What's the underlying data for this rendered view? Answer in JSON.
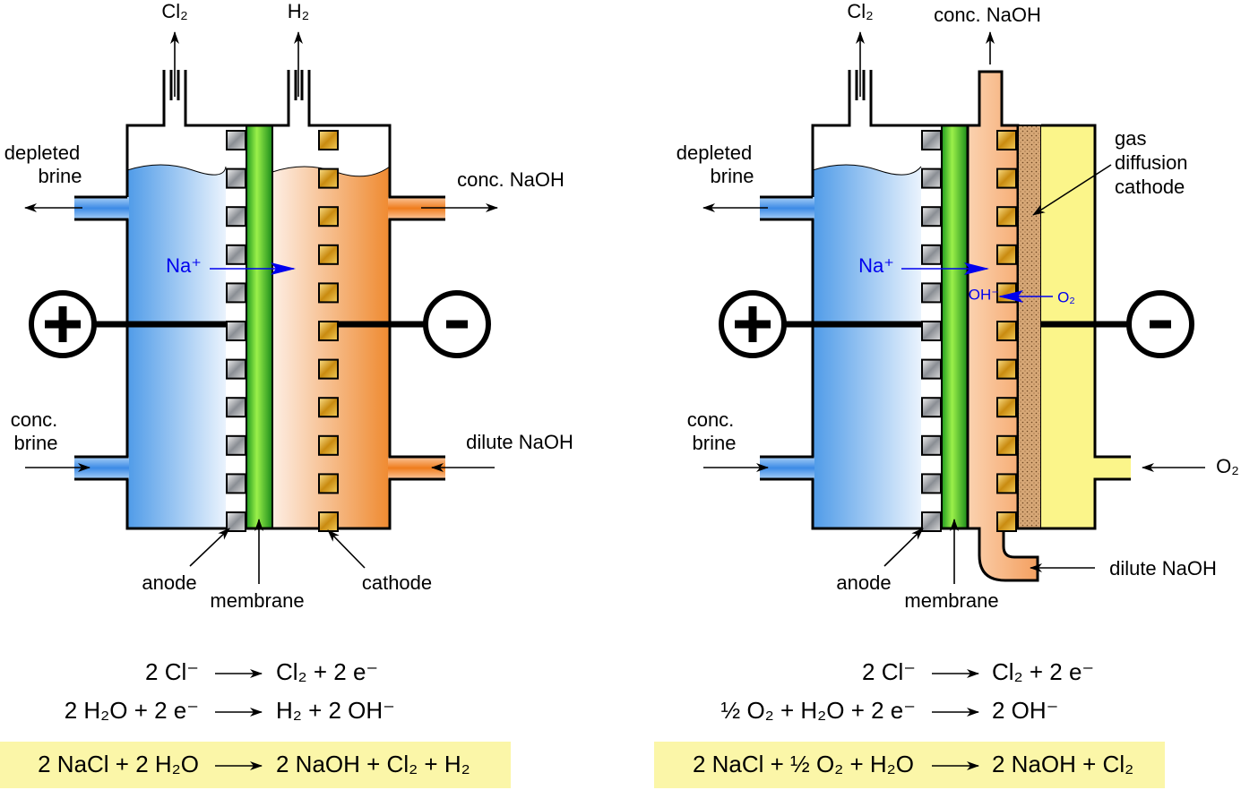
{
  "left_cell": {
    "gas_outlet_1": "Cl₂",
    "gas_outlet_2": "H₂",
    "anolyte_out": [
      "depleted",
      "brine"
    ],
    "catholyte_out": "conc. NaOH",
    "ion": "Na⁺",
    "anolyte_in": [
      "conc.",
      "brine"
    ],
    "catholyte_in": "dilute NaOH",
    "anode": "anode",
    "membrane": "membrane",
    "cathode": "cathode",
    "equations": [
      [
        "2 Cl⁻",
        "Cl₂ + 2 e⁻"
      ],
      [
        "2 H₂O + 2 e⁻",
        "H₂ + 2 OH⁻"
      ]
    ],
    "overall": [
      "2 NaCl + 2 H₂O",
      "2 NaOH + Cl₂ + H₂"
    ]
  },
  "right_cell": {
    "gas_outlet": "Cl₂",
    "catholyte_out": "conc. NaOH",
    "anolyte_out": [
      "depleted",
      "brine"
    ],
    "cathode_label": [
      "gas",
      "diffusion",
      "cathode"
    ],
    "ion": "Na⁺",
    "hydroxide": "OH⁻",
    "oxygen": "O₂",
    "anolyte_in": [
      "conc.",
      "brine"
    ],
    "gas_in": "O₂",
    "catholyte_in": "dilute NaOH",
    "anode": "anode",
    "membrane": "membrane",
    "equations": [
      [
        "2 Cl⁻",
        "Cl₂ + 2 e⁻"
      ],
      [
        "½ O₂ + H₂O + 2 e⁻",
        "2 OH⁻"
      ]
    ],
    "overall": [
      "2 NaCl + ½ O₂ + H₂O",
      "2 NaOH + Cl₂"
    ]
  }
}
